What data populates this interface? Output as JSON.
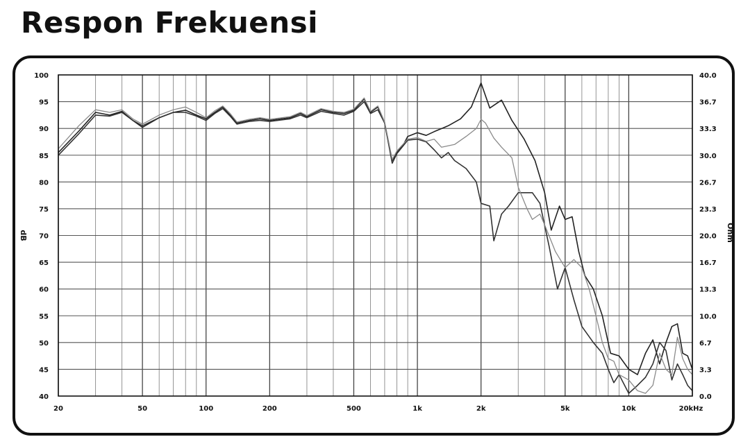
{
  "title": "Respon Frekuensi",
  "chart_data": {
    "type": "line",
    "title": "Respon Frekuensi",
    "xscale": "log",
    "xlim": [
      20,
      20000
    ],
    "ylim": [
      40,
      100
    ],
    "ylabel": "dB",
    "ylabel_right": "Ohm",
    "ylim_right": [
      0,
      40
    ],
    "grid": true,
    "x_tick_labels": [
      {
        "f": 20,
        "label": "20"
      },
      {
        "f": 50,
        "label": "50"
      },
      {
        "f": 100,
        "label": "100"
      },
      {
        "f": 200,
        "label": "200"
      },
      {
        "f": 500,
        "label": "500"
      },
      {
        "f": 1000,
        "label": "1k"
      },
      {
        "f": 2000,
        "label": "2k"
      },
      {
        "f": 5000,
        "label": "5k"
      },
      {
        "f": 10000,
        "label": "10k"
      },
      {
        "f": 20000,
        "label": "20kHz"
      }
    ],
    "y_ticks": [
      100,
      95,
      90,
      85,
      80,
      75,
      70,
      65,
      60,
      55,
      50,
      45,
      40
    ],
    "y_right_ticks": [
      "40.0",
      "36.7",
      "33.3",
      "30.0",
      "26.7",
      "23.3",
      "20.0",
      "16.7",
      "13.3",
      "10.0",
      "6.7",
      "3.3",
      "0.0"
    ],
    "series": [
      {
        "color": "#222222",
        "points": [
          [
            20,
            85.5
          ],
          [
            25,
            89.5
          ],
          [
            30,
            93
          ],
          [
            35,
            92.5
          ],
          [
            40,
            93.2
          ],
          [
            45,
            91.5
          ],
          [
            50,
            90.2
          ],
          [
            60,
            92
          ],
          [
            70,
            93
          ],
          [
            80,
            93.4
          ],
          [
            90,
            92.5
          ],
          [
            100,
            91.8
          ],
          [
            110,
            93
          ],
          [
            120,
            94
          ],
          [
            130,
            92.5
          ],
          [
            140,
            91
          ],
          [
            160,
            91.5
          ],
          [
            180,
            91.8
          ],
          [
            200,
            91.5
          ],
          [
            250,
            92
          ],
          [
            280,
            92.8
          ],
          [
            300,
            92.2
          ],
          [
            350,
            93.5
          ],
          [
            400,
            93
          ],
          [
            450,
            92.8
          ],
          [
            500,
            93.4
          ],
          [
            560,
            95.5
          ],
          [
            600,
            93
          ],
          [
            650,
            94
          ],
          [
            700,
            91
          ],
          [
            760,
            84
          ],
          [
            800,
            85.5
          ],
          [
            860,
            87
          ],
          [
            900,
            88.5
          ],
          [
            1000,
            89.2
          ],
          [
            1100,
            88.7
          ],
          [
            1200,
            89.4
          ],
          [
            1400,
            90.5
          ],
          [
            1600,
            91.8
          ],
          [
            1800,
            94
          ],
          [
            2000,
            98.5
          ],
          [
            2200,
            93.8
          ],
          [
            2500,
            95.3
          ],
          [
            2800,
            91.5
          ],
          [
            3200,
            88
          ],
          [
            3600,
            84
          ],
          [
            4000,
            78
          ],
          [
            4300,
            71
          ],
          [
            4700,
            75.5
          ],
          [
            5000,
            73
          ],
          [
            5400,
            73.5
          ],
          [
            5800,
            67
          ],
          [
            6200,
            62.5
          ],
          [
            6800,
            60
          ],
          [
            7500,
            55
          ],
          [
            8200,
            48
          ],
          [
            9000,
            47.5
          ],
          [
            10000,
            45
          ],
          [
            11000,
            44
          ],
          [
            12000,
            48
          ],
          [
            13000,
            50.5
          ],
          [
            14000,
            46
          ],
          [
            15000,
            50
          ],
          [
            16000,
            53
          ],
          [
            17000,
            53.5
          ],
          [
            18000,
            48
          ],
          [
            19000,
            47.5
          ],
          [
            20000,
            45
          ]
        ]
      },
      {
        "color": "#333333",
        "points": [
          [
            20,
            85
          ],
          [
            25,
            89
          ],
          [
            30,
            92.5
          ],
          [
            35,
            92.3
          ],
          [
            40,
            93
          ],
          [
            45,
            91.5
          ],
          [
            50,
            90.5
          ],
          [
            60,
            92
          ],
          [
            70,
            93
          ],
          [
            80,
            93
          ],
          [
            90,
            92.3
          ],
          [
            100,
            91.5
          ],
          [
            110,
            92.8
          ],
          [
            120,
            93.7
          ],
          [
            130,
            92.3
          ],
          [
            140,
            90.8
          ],
          [
            160,
            91.3
          ],
          [
            180,
            91.5
          ],
          [
            200,
            91.3
          ],
          [
            250,
            91.8
          ],
          [
            280,
            92.5
          ],
          [
            300,
            92
          ],
          [
            350,
            93.2
          ],
          [
            400,
            92.8
          ],
          [
            450,
            92.5
          ],
          [
            500,
            93.2
          ],
          [
            560,
            95
          ],
          [
            600,
            92.8
          ],
          [
            650,
            93.5
          ],
          [
            700,
            91
          ],
          [
            760,
            83.5
          ],
          [
            800,
            85.3
          ],
          [
            900,
            87.8
          ],
          [
            1000,
            88
          ],
          [
            1100,
            87.5
          ],
          [
            1200,
            86
          ],
          [
            1300,
            84.5
          ],
          [
            1400,
            85.5
          ],
          [
            1500,
            84
          ],
          [
            1700,
            82.5
          ],
          [
            1900,
            80
          ],
          [
            2000,
            76
          ],
          [
            2200,
            75.5
          ],
          [
            2300,
            69
          ],
          [
            2500,
            74
          ],
          [
            2700,
            75.5
          ],
          [
            3000,
            78
          ],
          [
            3500,
            78
          ],
          [
            3800,
            76
          ],
          [
            4200,
            68
          ],
          [
            4600,
            60
          ],
          [
            5000,
            64
          ],
          [
            5500,
            58
          ],
          [
            6000,
            53
          ],
          [
            6800,
            50
          ],
          [
            7500,
            48
          ],
          [
            8000,
            45
          ],
          [
            8500,
            42.5
          ],
          [
            9000,
            44
          ],
          [
            10000,
            40.5
          ],
          [
            11000,
            42
          ],
          [
            12000,
            43.5
          ],
          [
            13000,
            46
          ],
          [
            14000,
            50
          ],
          [
            15000,
            48.5
          ],
          [
            16000,
            43
          ],
          [
            17000,
            46
          ],
          [
            18000,
            44
          ],
          [
            19000,
            42
          ],
          [
            20000,
            41
          ]
        ]
      },
      {
        "color": "#8a8a8a",
        "points": [
          [
            20,
            86.2
          ],
          [
            25,
            90.5
          ],
          [
            30,
            93.5
          ],
          [
            35,
            93
          ],
          [
            40,
            93.5
          ],
          [
            45,
            91.8
          ],
          [
            50,
            90.8
          ],
          [
            60,
            92.5
          ],
          [
            70,
            93.5
          ],
          [
            80,
            94
          ],
          [
            90,
            93
          ],
          [
            100,
            92
          ],
          [
            110,
            93.3
          ],
          [
            120,
            94.2
          ],
          [
            130,
            92.8
          ],
          [
            140,
            91.2
          ],
          [
            160,
            91.7
          ],
          [
            180,
            92
          ],
          [
            200,
            91.7
          ],
          [
            250,
            92.2
          ],
          [
            280,
            93
          ],
          [
            300,
            92.4
          ],
          [
            350,
            93.7
          ],
          [
            400,
            93.2
          ],
          [
            450,
            93
          ],
          [
            500,
            93.6
          ],
          [
            560,
            95.7
          ],
          [
            600,
            93.2
          ],
          [
            650,
            94.2
          ],
          [
            700,
            91.2
          ],
          [
            760,
            84.2
          ],
          [
            800,
            85.8
          ],
          [
            900,
            88
          ],
          [
            1000,
            88.3
          ],
          [
            1100,
            87.6
          ],
          [
            1200,
            88
          ],
          [
            1300,
            86.5
          ],
          [
            1500,
            87
          ],
          [
            1700,
            88.5
          ],
          [
            1900,
            90
          ],
          [
            2000,
            91.7
          ],
          [
            2100,
            91
          ],
          [
            2300,
            88.2
          ],
          [
            2500,
            86.5
          ],
          [
            2800,
            84.5
          ],
          [
            3000,
            79
          ],
          [
            3300,
            75
          ],
          [
            3500,
            73
          ],
          [
            3800,
            74
          ],
          [
            4000,
            72
          ],
          [
            4500,
            67
          ],
          [
            5000,
            64
          ],
          [
            5500,
            65.5
          ],
          [
            6000,
            64
          ],
          [
            6500,
            60
          ],
          [
            7000,
            55
          ],
          [
            7500,
            50
          ],
          [
            8000,
            47
          ],
          [
            8500,
            46.5
          ],
          [
            9000,
            44
          ],
          [
            10000,
            43
          ],
          [
            11000,
            41
          ],
          [
            12000,
            40.5
          ],
          [
            13000,
            42
          ],
          [
            14000,
            48
          ],
          [
            15000,
            45
          ],
          [
            16000,
            44
          ],
          [
            17000,
            51
          ],
          [
            18000,
            47
          ],
          [
            19000,
            45
          ],
          [
            20000,
            44
          ]
        ]
      }
    ]
  }
}
